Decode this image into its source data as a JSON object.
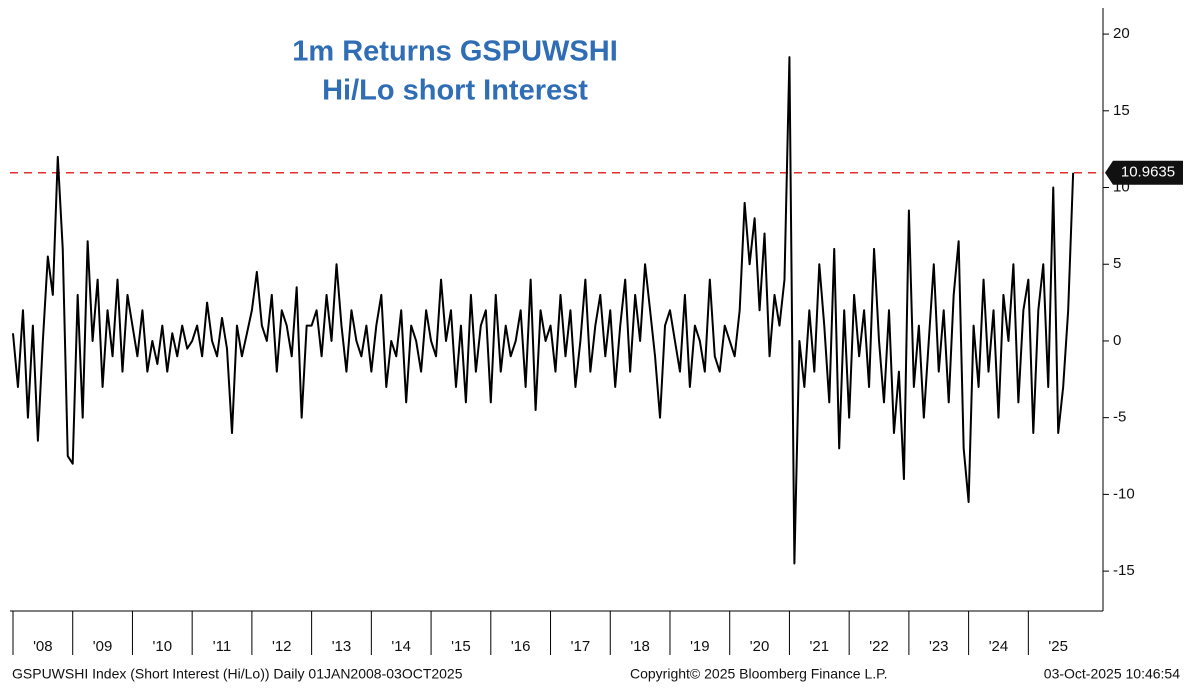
{
  "chart_data": {
    "type": "line",
    "title_lines": [
      "1m Returns GSPUWSHI",
      "Hi/Lo short Interest"
    ],
    "footer": [
      "GSPUWSHI Index (Short Interest (Hi/Lo)) Daily 01JAN2008-03OCT2025",
      "Copyright© 2025 Bloomberg Finance L.P.",
      "03-Oct-2025 10:46:54"
    ],
    "series": [
      {
        "name": "GSPUWSHI",
        "color": "#000000",
        "x": [
          2008,
          2008.083,
          2008.167,
          2008.25,
          2008.333,
          2008.417,
          2008.5,
          2008.583,
          2008.667,
          2008.75,
          2008.833,
          2008.917,
          2009,
          2009.083,
          2009.167,
          2009.25,
          2009.333,
          2009.417,
          2009.5,
          2009.583,
          2009.667,
          2009.75,
          2009.833,
          2009.917,
          2010,
          2010.083,
          2010.167,
          2010.25,
          2010.333,
          2010.417,
          2010.5,
          2010.583,
          2010.667,
          2010.75,
          2010.833,
          2010.917,
          2011,
          2011.083,
          2011.167,
          2011.25,
          2011.333,
          2011.417,
          2011.5,
          2011.583,
          2011.667,
          2011.75,
          2011.833,
          2011.917,
          2012,
          2012.083,
          2012.167,
          2012.25,
          2012.333,
          2012.417,
          2012.5,
          2012.583,
          2012.667,
          2012.75,
          2012.833,
          2012.917,
          2013,
          2013.083,
          2013.167,
          2013.25,
          2013.333,
          2013.417,
          2013.5,
          2013.583,
          2013.667,
          2013.75,
          2013.833,
          2013.917,
          2014,
          2014.083,
          2014.167,
          2014.25,
          2014.333,
          2014.417,
          2014.5,
          2014.583,
          2014.667,
          2014.75,
          2014.833,
          2014.917,
          2015,
          2015.083,
          2015.167,
          2015.25,
          2015.333,
          2015.417,
          2015.5,
          2015.583,
          2015.667,
          2015.75,
          2015.833,
          2015.917,
          2016,
          2016.083,
          2016.167,
          2016.25,
          2016.333,
          2016.417,
          2016.5,
          2016.583,
          2016.667,
          2016.75,
          2016.833,
          2016.917,
          2017,
          2017.083,
          2017.167,
          2017.25,
          2017.333,
          2017.417,
          2017.5,
          2017.583,
          2017.667,
          2017.75,
          2017.833,
          2017.917,
          2018,
          2018.083,
          2018.167,
          2018.25,
          2018.333,
          2018.417,
          2018.5,
          2018.583,
          2018.667,
          2018.75,
          2018.833,
          2018.917,
          2019,
          2019.083,
          2019.167,
          2019.25,
          2019.333,
          2019.417,
          2019.5,
          2019.583,
          2019.667,
          2019.75,
          2019.833,
          2019.917,
          2020,
          2020.083,
          2020.167,
          2020.25,
          2020.333,
          2020.417,
          2020.5,
          2020.583,
          2020.667,
          2020.75,
          2020.833,
          2020.917,
          2021,
          2021.083,
          2021.167,
          2021.25,
          2021.333,
          2021.417,
          2021.5,
          2021.583,
          2021.667,
          2021.75,
          2021.833,
          2021.917,
          2022,
          2022.083,
          2022.167,
          2022.25,
          2022.333,
          2022.417,
          2022.5,
          2022.583,
          2022.667,
          2022.75,
          2022.833,
          2022.917,
          2023,
          2023.083,
          2023.167,
          2023.25,
          2023.333,
          2023.417,
          2023.5,
          2023.583,
          2023.667,
          2023.75,
          2023.833,
          2023.917,
          2024,
          2024.083,
          2024.167,
          2024.25,
          2024.333,
          2024.417,
          2024.5,
          2024.583,
          2024.667,
          2024.75,
          2024.833,
          2024.917,
          2025,
          2025.083,
          2025.167,
          2025.25,
          2025.333,
          2025.417,
          2025.5,
          2025.583,
          2025.667,
          2025.75
        ],
        "values": [
          0.5,
          -3,
          2,
          -5,
          1,
          -6.5,
          0,
          5.5,
          3,
          12,
          6,
          -7.5,
          -8,
          3,
          -5,
          6.5,
          0,
          4,
          -3,
          2,
          -1,
          4,
          -2,
          3,
          1,
          -1,
          2,
          -2,
          0,
          -1.5,
          1,
          -2,
          0.5,
          -1,
          1,
          -0.5,
          0,
          1,
          -1,
          2.5,
          0,
          -1,
          1.5,
          -0.5,
          -6,
          1,
          -1,
          0.5,
          2,
          4.5,
          1,
          0,
          3,
          -2,
          2,
          1,
          -1,
          3.5,
          -5,
          1,
          1,
          2,
          -1,
          3,
          0,
          5,
          1,
          -2,
          2,
          0,
          -1,
          1,
          -2,
          1,
          3,
          -3,
          0,
          -1,
          2,
          -4,
          1,
          0,
          -2,
          2,
          0,
          -1,
          4,
          0,
          2,
          -3,
          1,
          -4,
          3,
          -2,
          1,
          2,
          -4,
          3,
          -2,
          1,
          -1,
          0,
          2,
          -3,
          4,
          -4.5,
          2,
          0,
          1,
          -2,
          3,
          -1,
          2,
          -3,
          0,
          4,
          -2,
          1,
          3,
          -1,
          2,
          -3,
          1,
          4,
          -2,
          3,
          0,
          5,
          2,
          -1,
          -5,
          1,
          2,
          0,
          -2,
          3,
          -3,
          1,
          0,
          -2,
          4,
          -1,
          -2,
          1,
          0,
          -1,
          2,
          9,
          5,
          8,
          2,
          7,
          -1,
          3,
          1,
          4,
          18.5,
          -14.5,
          0,
          -3,
          2,
          -2,
          5,
          1,
          -4,
          6,
          -7,
          2,
          -5,
          3,
          -1,
          2,
          -3,
          6,
          0,
          -4,
          2,
          -6,
          -2,
          -9,
          8.5,
          -3,
          1,
          -5,
          0,
          5,
          -2,
          2,
          -4,
          3,
          6.5,
          -7,
          -10.5,
          1,
          -3,
          4,
          -2,
          2,
          -5,
          3,
          0,
          5,
          -4,
          2,
          4,
          -6,
          2,
          5,
          -3,
          10,
          -6,
          -3,
          2,
          10.9635
        ]
      }
    ],
    "reference_line": {
      "value": 10.9635,
      "color": "#e03030"
    },
    "xlim": [
      2007.95,
      2026.25
    ],
    "xticks": [
      {
        "value": 2008,
        "label": "'08"
      },
      {
        "value": 2009,
        "label": "'09"
      },
      {
        "value": 2010,
        "label": "'10"
      },
      {
        "value": 2011,
        "label": "'11"
      },
      {
        "value": 2012,
        "label": "'12"
      },
      {
        "value": 2013,
        "label": "'13"
      },
      {
        "value": 2014,
        "label": "'14"
      },
      {
        "value": 2015,
        "label": "'15"
      },
      {
        "value": 2016,
        "label": "'16"
      },
      {
        "value": 2017,
        "label": "'17"
      },
      {
        "value": 2018,
        "label": "'18"
      },
      {
        "value": 2019,
        "label": "'19"
      },
      {
        "value": 2020,
        "label": "'20"
      },
      {
        "value": 2021,
        "label": "'21"
      },
      {
        "value": 2022,
        "label": "'22"
      },
      {
        "value": 2023,
        "label": "'23"
      },
      {
        "value": 2024,
        "label": "'24"
      },
      {
        "value": 2025,
        "label": "'25"
      }
    ],
    "ylim": [
      -17.6,
      21.7
    ],
    "yticks": [
      -15,
      -10,
      -5,
      0,
      5,
      10,
      15,
      20
    ],
    "title_color": "#2f6db5"
  }
}
